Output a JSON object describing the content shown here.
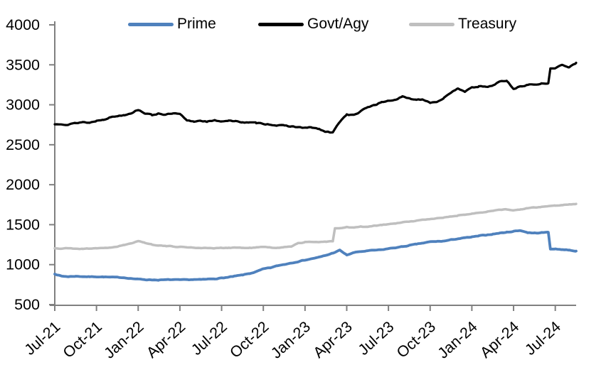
{
  "chart_data": {
    "type": "line",
    "title": "",
    "xlabel": "",
    "ylabel": "",
    "ylim": [
      500,
      4000
    ],
    "y_tick_labels": [
      "500",
      "1000",
      "1500",
      "2000",
      "2500",
      "3000",
      "3500",
      "4000"
    ],
    "x_tick_labels": [
      "Jul-21",
      "Oct-21",
      "Jan-22",
      "Apr-22",
      "Jul-22",
      "Oct-22",
      "Jan-23",
      "Apr-23",
      "Jul-23",
      "Oct-23",
      "Jan-24",
      "Apr-24",
      "Jul-24"
    ],
    "x_tick_months": [
      0,
      3,
      6,
      9,
      12,
      15,
      18,
      21,
      24,
      27,
      30,
      33,
      36
    ],
    "month_step": 0.5,
    "month_span": 37.5,
    "grid": false,
    "legend_position": "top",
    "axis_color": "#808080",
    "text_color": "#000000",
    "series": [
      {
        "name": "Prime",
        "color": "#4F81BD",
        "values": [
          885,
          855,
          850,
          855,
          852,
          848,
          850,
          847,
          843,
          840,
          838,
          828,
          818,
          813,
          810,
          808,
          810,
          812,
          808,
          810,
          814,
          812,
          818,
          824,
          833,
          842,
          856,
          870,
          888,
          912,
          945,
          960,
          985,
          1003,
          1022,
          1040,
          1058,
          1075,
          1092,
          1115,
          1145,
          1180,
          1120,
          1150,
          1163,
          1172,
          1180,
          1185,
          1200,
          1212,
          1225,
          1240,
          1255,
          1270,
          1285,
          1290,
          1295,
          1310,
          1325,
          1335,
          1345,
          1358,
          1370,
          1382,
          1395,
          1405,
          1418,
          1428,
          1402,
          1395,
          1400,
          1405,
          1195,
          1190,
          1182,
          1170
        ]
      },
      {
        "name": "Govt/Agy",
        "color": "#000000",
        "values": [
          2755,
          2765,
          2755,
          2770,
          2785,
          2775,
          2800,
          2820,
          2845,
          2860,
          2875,
          2900,
          2940,
          2895,
          2870,
          2895,
          2875,
          2890,
          2880,
          2800,
          2790,
          2805,
          2790,
          2800,
          2795,
          2805,
          2790,
          2785,
          2775,
          2770,
          2765,
          2755,
          2745,
          2735,
          2730,
          2720,
          2710,
          2715,
          2695,
          2660,
          2650,
          2790,
          2880,
          2870,
          2915,
          2970,
          3000,
          3030,
          3050,
          3065,
          3100,
          3075,
          3065,
          3070,
          3030,
          3040,
          3090,
          3140,
          3210,
          3170,
          3210,
          3230,
          3220,
          3240,
          3290,
          3300,
          3200,
          3230,
          3250,
          3255,
          3260,
          3270,
          3455,
          3500,
          3475,
          3525
        ]
      },
      {
        "name": "Treasury",
        "color": "#BFBFBF",
        "values": [
          1205,
          1200,
          1205,
          1200,
          1198,
          1202,
          1208,
          1205,
          1215,
          1225,
          1245,
          1262,
          1300,
          1272,
          1252,
          1242,
          1232,
          1228,
          1222,
          1218,
          1213,
          1210,
          1208,
          1205,
          1208,
          1212,
          1215,
          1210,
          1208,
          1215,
          1220,
          1214,
          1212,
          1218,
          1228,
          1272,
          1280,
          1283,
          1285,
          1288,
          1292,
          1455,
          1468,
          1462,
          1475,
          1470,
          1485,
          1495,
          1505,
          1515,
          1528,
          1538,
          1548,
          1560,
          1572,
          1580,
          1590,
          1600,
          1615,
          1628,
          1642,
          1652,
          1662,
          1672,
          1688,
          1692,
          1678,
          1690,
          1705,
          1712,
          1722,
          1730,
          1742,
          1748,
          1752,
          1760
        ]
      }
    ]
  }
}
